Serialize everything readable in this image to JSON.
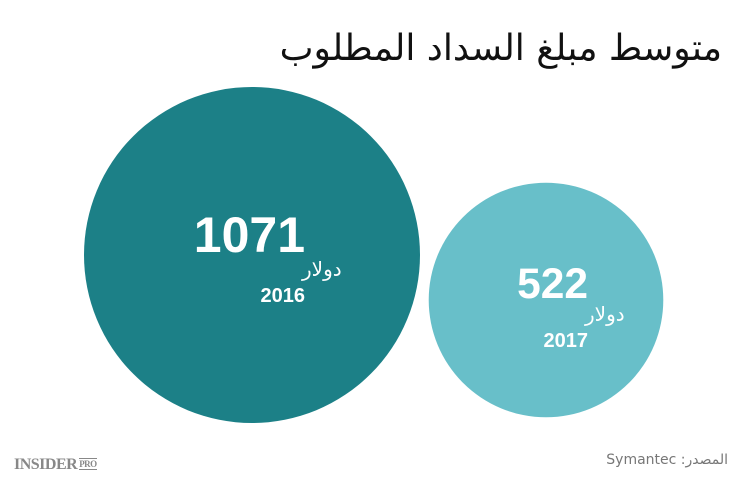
{
  "chart_data": {
    "type": "bubble",
    "title": "متوسط مبلغ السداد المطلوب",
    "unit": "دولار",
    "points": [
      {
        "year": "2016",
        "value": 1071,
        "color": "#1c8087"
      },
      {
        "year": "2017",
        "value": 522,
        "color": "#68bfc9"
      }
    ],
    "source_label": "المصدر:",
    "source": "Symantec"
  },
  "branding": {
    "logo": "INSIDER",
    "logo_suffix": "PRO"
  }
}
